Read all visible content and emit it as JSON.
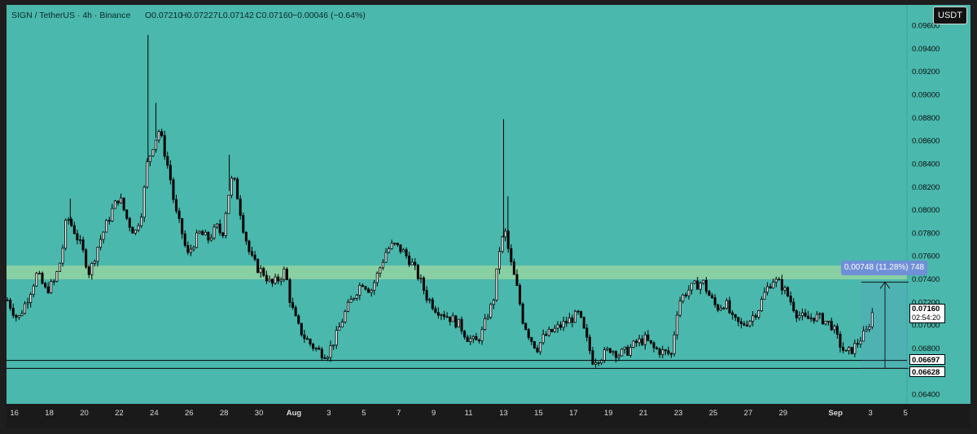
{
  "header": {
    "symbol": "SIGN / TetherUS · 4h · Binance",
    "open": "O0.07210",
    "high": "H0.07227",
    "low": "L0.07142",
    "close": "C0.07160",
    "change": "−0.00046 (−0.64%)"
  },
  "currency_badge": "USDT",
  "measure": {
    "label": "0.00748 (11.28%) 748"
  },
  "price_tags": {
    "current": "0.07160",
    "countdown": "02:54:20",
    "support_high": "0.06697",
    "support_low": "0.06628"
  },
  "colors": {
    "background": "#4ab8ad",
    "zone": "#8fd1a2",
    "candle_up": "#ffffff",
    "candle_down": "#000000",
    "measure_accent": "#6f8fd6"
  },
  "chart_data": {
    "type": "candlestick",
    "ylim": [
      0.0632,
      0.0978
    ],
    "y_ticks": [
      "0.09600",
      "0.09400",
      "0.09200",
      "0.09000",
      "0.08800",
      "0.08600",
      "0.08400",
      "0.08200",
      "0.08000",
      "0.07800",
      "0.07600",
      "0.07400",
      "0.07200",
      "0.07000",
      "0.06800",
      "0.06600",
      "0.06400"
    ],
    "y_tick_values": [
      0.096,
      0.094,
      0.092,
      0.09,
      0.088,
      0.086,
      0.084,
      0.082,
      0.08,
      0.078,
      0.076,
      0.074,
      0.072,
      0.07,
      0.068,
      0.066,
      0.064
    ],
    "x_ticks": [
      "16",
      "18",
      "20",
      "22",
      "24",
      "26",
      "28",
      "30",
      "Aug",
      "3",
      "5",
      "7",
      "9",
      "11",
      "13",
      "15",
      "17",
      "19",
      "21",
      "23",
      "25",
      "27",
      "29",
      "Sep",
      "3",
      "5"
    ],
    "x_tick_days": [
      16,
      18,
      20,
      22,
      24,
      26,
      28,
      30,
      32,
      34,
      36,
      38,
      40,
      42,
      44,
      46,
      48,
      50,
      52,
      54,
      56,
      58,
      60,
      63,
      65,
      67
    ],
    "x_range_days": [
      15.55,
      68.3
    ],
    "zone": {
      "low": 0.074,
      "high": 0.0752
    },
    "support_lines": [
      0.06697,
      0.06628
    ],
    "measure_range": {
      "from": 0.06628,
      "to": 0.07376
    },
    "anchors": [
      [
        15.6,
        0.0722
      ],
      [
        16.2,
        0.0705
      ],
      [
        16.8,
        0.0725
      ],
      [
        17.3,
        0.0745
      ],
      [
        17.8,
        0.073
      ],
      [
        18.3,
        0.0738
      ],
      [
        18.7,
        0.076
      ],
      [
        19.0,
        0.0795
      ],
      [
        19.5,
        0.078
      ],
      [
        19.9,
        0.0765
      ],
      [
        20.3,
        0.0745
      ],
      [
        20.8,
        0.077
      ],
      [
        21.2,
        0.0785
      ],
      [
        21.6,
        0.08
      ],
      [
        22.0,
        0.0812
      ],
      [
        22.5,
        0.079
      ],
      [
        22.9,
        0.078
      ],
      [
        23.3,
        0.08
      ],
      [
        23.6,
        0.084
      ],
      [
        23.9,
        0.0855
      ],
      [
        24.3,
        0.087
      ],
      [
        24.6,
        0.085
      ],
      [
        24.9,
        0.083
      ],
      [
        25.2,
        0.08
      ],
      [
        25.6,
        0.078
      ],
      [
        25.9,
        0.076
      ],
      [
        26.2,
        0.077
      ],
      [
        26.6,
        0.078
      ],
      [
        27.1,
        0.0775
      ],
      [
        27.6,
        0.0785
      ],
      [
        27.9,
        0.0778
      ],
      [
        28.2,
        0.081
      ],
      [
        28.5,
        0.083
      ],
      [
        28.8,
        0.081
      ],
      [
        29.1,
        0.0785
      ],
      [
        29.5,
        0.076
      ],
      [
        29.9,
        0.075
      ],
      [
        30.3,
        0.0745
      ],
      [
        30.7,
        0.0735
      ],
      [
        31.1,
        0.074
      ],
      [
        31.5,
        0.0748
      ],
      [
        31.8,
        0.072
      ],
      [
        32.2,
        0.07
      ],
      [
        32.6,
        0.069
      ],
      [
        33.0,
        0.0683
      ],
      [
        33.5,
        0.0677
      ],
      [
        33.9,
        0.0675
      ],
      [
        34.4,
        0.069
      ],
      [
        34.9,
        0.071
      ],
      [
        35.4,
        0.0725
      ],
      [
        35.9,
        0.0738
      ],
      [
        36.4,
        0.073
      ],
      [
        36.8,
        0.0745
      ],
      [
        37.3,
        0.0765
      ],
      [
        37.7,
        0.077
      ],
      [
        38.2,
        0.0765
      ],
      [
        38.7,
        0.0755
      ],
      [
        39.2,
        0.074
      ],
      [
        39.6,
        0.0725
      ],
      [
        40.1,
        0.0715
      ],
      [
        40.6,
        0.071
      ],
      [
        41.1,
        0.0705
      ],
      [
        41.5,
        0.07
      ],
      [
        41.9,
        0.069
      ],
      [
        42.4,
        0.0685
      ],
      [
        42.8,
        0.0695
      ],
      [
        43.1,
        0.071
      ],
      [
        43.4,
        0.072
      ],
      [
        43.8,
        0.077
      ],
      [
        44.1,
        0.078
      ],
      [
        44.4,
        0.0755
      ],
      [
        44.8,
        0.073
      ],
      [
        45.1,
        0.0705
      ],
      [
        45.5,
        0.069
      ],
      [
        45.9,
        0.068
      ],
      [
        46.3,
        0.069
      ],
      [
        46.8,
        0.0695
      ],
      [
        47.3,
        0.07
      ],
      [
        47.8,
        0.0705
      ],
      [
        48.3,
        0.071
      ],
      [
        48.7,
        0.069
      ],
      [
        49.1,
        0.067
      ],
      [
        49.6,
        0.0673
      ],
      [
        50.1,
        0.068
      ],
      [
        50.6,
        0.0675
      ],
      [
        51.1,
        0.0678
      ],
      [
        51.6,
        0.0685
      ],
      [
        52.1,
        0.0688
      ],
      [
        52.6,
        0.068
      ],
      [
        53.1,
        0.0677
      ],
      [
        53.6,
        0.0675
      ],
      [
        54.0,
        0.072
      ],
      [
        54.5,
        0.073
      ],
      [
        55.0,
        0.0735
      ],
      [
        55.4,
        0.0738
      ],
      [
        55.8,
        0.0725
      ],
      [
        56.2,
        0.0715
      ],
      [
        56.7,
        0.072
      ],
      [
        57.1,
        0.0705
      ],
      [
        57.6,
        0.07
      ],
      [
        58.1,
        0.0705
      ],
      [
        58.6,
        0.0715
      ],
      [
        59.0,
        0.073
      ],
      [
        59.4,
        0.074
      ],
      [
        59.9,
        0.0735
      ],
      [
        60.3,
        0.0725
      ],
      [
        60.8,
        0.071
      ],
      [
        61.3,
        0.0705
      ],
      [
        61.8,
        0.0708
      ],
      [
        62.3,
        0.0705
      ],
      [
        62.8,
        0.07
      ],
      [
        63.2,
        0.0685
      ],
      [
        63.6,
        0.0675
      ],
      [
        64.0,
        0.068
      ],
      [
        64.4,
        0.0688
      ],
      [
        64.8,
        0.0695
      ],
      [
        65.2,
        0.0716
      ]
    ],
    "spikes": [
      {
        "day": 23.65,
        "high": 0.0952
      },
      {
        "day": 24.1,
        "high": 0.0893
      },
      {
        "day": 44.0,
        "high": 0.0879
      },
      {
        "day": 44.25,
        "high": 0.0812
      },
      {
        "day": 28.3,
        "high": 0.0848
      },
      {
        "day": 19.2,
        "high": 0.081
      }
    ]
  }
}
